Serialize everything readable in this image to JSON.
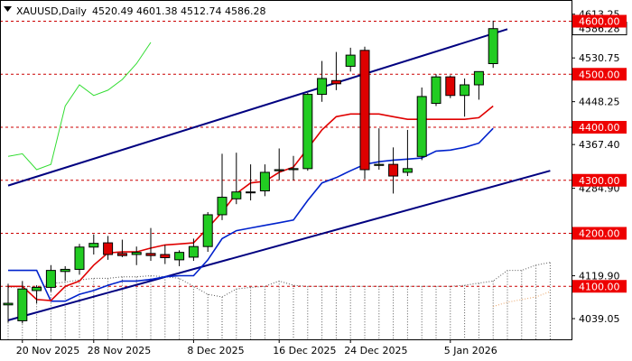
{
  "symbol": "XAUUSD,Daily",
  "ohlc_readout": "4520.49 4601.38 4512.74 4586.28",
  "colors": {
    "bull": "#22cc22",
    "bear": "#dd0000",
    "wick": "#000000",
    "tenkan": "#e00000",
    "kijun": "#0022cc",
    "chikou": "#33dd33",
    "cloud": "#555555",
    "senkou_b": "#e8a060",
    "channel": "#000080",
    "level_line": "#cc0000",
    "level_box": "#ee0000",
    "price_box": "#ffffff"
  },
  "chart_data": {
    "type": "candlestick",
    "ylim": [
      4000,
      4640
    ],
    "x_tick_labels": [
      "20 Nov 2025",
      "28 Nov 2025",
      "8 Dec 2025",
      "16 Dec 2025",
      "24 Dec 2025",
      "5 Jan 2026"
    ],
    "y_tick_labels": [
      "4613.25",
      "4530.75",
      "4448.25",
      "4367.40",
      "4284.90",
      "4202.40",
      "4119.90",
      "4039.05"
    ],
    "current_price": "4586.28",
    "levels": [
      {
        "value": 4600,
        "label": "4600.00"
      },
      {
        "value": 4500,
        "label": "4500.00"
      },
      {
        "value": 4400,
        "label": "4400.00"
      },
      {
        "value": 4300,
        "label": "4300.00"
      },
      {
        "value": 4200,
        "label": "4200.00"
      },
      {
        "value": 4100,
        "label": "4100.00"
      }
    ],
    "candles": [
      {
        "date": "19 Nov",
        "o": 4065,
        "h": 4105,
        "l": 4032,
        "c": 4068
      },
      {
        "date": "20 Nov",
        "o": 4035,
        "h": 4110,
        "l": 4030,
        "c": 4095
      },
      {
        "date": "21 Nov",
        "o": 4092,
        "h": 4102,
        "l": 4068,
        "c": 4098
      },
      {
        "date": "24 Nov",
        "o": 4098,
        "h": 4140,
        "l": 4090,
        "c": 4130
      },
      {
        "date": "25 Nov",
        "o": 4128,
        "h": 4138,
        "l": 4110,
        "c": 4132
      },
      {
        "date": "26 Nov",
        "o": 4132,
        "h": 4180,
        "l": 4122,
        "c": 4174
      },
      {
        "date": "27 Nov",
        "o": 4174,
        "h": 4198,
        "l": 4160,
        "c": 4181
      },
      {
        "date": "28 Nov",
        "o": 4182,
        "h": 4195,
        "l": 4150,
        "c": 4160
      },
      {
        "date": "1 Dec",
        "o": 4162,
        "h": 4188,
        "l": 4155,
        "c": 4158
      },
      {
        "date": "2 Dec",
        "o": 4160,
        "h": 4175,
        "l": 4140,
        "c": 4164
      },
      {
        "date": "3 Dec",
        "o": 4162,
        "h": 4210,
        "l": 4148,
        "c": 4158
      },
      {
        "date": "4 Dec",
        "o": 4160,
        "h": 4178,
        "l": 4142,
        "c": 4154
      },
      {
        "date": "5 Dec",
        "o": 4150,
        "h": 4168,
        "l": 4138,
        "c": 4164
      },
      {
        "date": "8 Dec",
        "o": 4155,
        "h": 4190,
        "l": 4148,
        "c": 4175
      },
      {
        "date": "9 Dec",
        "o": 4175,
        "h": 4240,
        "l": 4165,
        "c": 4235
      },
      {
        "date": "10 Dec",
        "o": 4235,
        "h": 4350,
        "l": 4225,
        "c": 4268
      },
      {
        "date": "11 Dec",
        "o": 4265,
        "h": 4352,
        "l": 4255,
        "c": 4278
      },
      {
        "date": "12 Dec",
        "o": 4278,
        "h": 4330,
        "l": 4262,
        "c": 4278
      },
      {
        "date": "15 Dec",
        "o": 4280,
        "h": 4330,
        "l": 4270,
        "c": 4315
      },
      {
        "date": "16 Dec",
        "o": 4318,
        "h": 4360,
        "l": 4300,
        "c": 4320
      },
      {
        "date": "17 Dec",
        "o": 4320,
        "h": 4346,
        "l": 4300,
        "c": 4322
      },
      {
        "date": "18 Dec",
        "o": 4322,
        "h": 4465,
        "l": 4318,
        "c": 4462
      },
      {
        "date": "19 Dec",
        "o": 4462,
        "h": 4525,
        "l": 4448,
        "c": 4492
      },
      {
        "date": "22 Dec",
        "o": 4488,
        "h": 4542,
        "l": 4470,
        "c": 4482
      },
      {
        "date": "23 Dec",
        "o": 4515,
        "h": 4550,
        "l": 4505,
        "c": 4536
      },
      {
        "date": "24 Dec",
        "o": 4545,
        "h": 4552,
        "l": 4302,
        "c": 4320
      },
      {
        "date": "26 Dec",
        "o": 4328,
        "h": 4398,
        "l": 4320,
        "c": 4330
      },
      {
        "date": "29 Dec",
        "o": 4330,
        "h": 4362,
        "l": 4275,
        "c": 4308
      },
      {
        "date": "30 Dec",
        "o": 4315,
        "h": 4395,
        "l": 4308,
        "c": 4322
      },
      {
        "date": "31 Dec",
        "o": 4345,
        "h": 4475,
        "l": 4338,
        "c": 4458
      },
      {
        "date": "2 Jan",
        "o": 4445,
        "h": 4500,
        "l": 4440,
        "c": 4495
      },
      {
        "date": "5 Jan",
        "o": 4495,
        "h": 4498,
        "l": 4455,
        "c": 4460
      },
      {
        "date": "6 Jan",
        "o": 4460,
        "h": 4492,
        "l": 4420,
        "c": 4480
      },
      {
        "date": "7 Jan",
        "o": 4480,
        "h": 4500,
        "l": 4452,
        "c": 4505
      },
      {
        "date": "8 Jan",
        "o": 4520,
        "h": 4601,
        "l": 4512,
        "c": 4586
      }
    ],
    "tenkan": [
      4100,
      4100,
      4075,
      4073,
      4100,
      4110,
      4140,
      4163,
      4165,
      4165,
      4172,
      4178,
      4180,
      4182,
      4210,
      4240,
      4275,
      4295,
      4298,
      4315,
      4325,
      4360,
      4395,
      4420,
      4425,
      4425,
      4425,
      4420,
      4415,
      4415,
      4415,
      4415,
      4415,
      4418,
      4440
    ],
    "kijun": [
      4130,
      4130,
      4130,
      4072,
      4072,
      4085,
      4092,
      4102,
      4110,
      4110,
      4113,
      4118,
      4120,
      4120,
      4150,
      4190,
      4205,
      4210,
      4215,
      4220,
      4225,
      4262,
      4295,
      4305,
      4318,
      4330,
      4335,
      4338,
      4340,
      4342,
      4355,
      4357,
      4362,
      4370,
      4398
    ],
    "chikou": {
      "start_index": 0,
      "values": [
        4345,
        4350,
        4320,
        4330,
        4440,
        4480,
        4460,
        4470,
        4490,
        4520,
        4560
      ]
    },
    "cloud_top": [
      4098,
      4100,
      4098,
      4105,
      4108,
      4112,
      4115,
      4115,
      4118,
      4118,
      4120,
      4118,
      4115,
      4100,
      4085,
      4080,
      4095,
      4098,
      4100,
      4110,
      4102,
      4100,
      4100,
      4100,
      4100,
      4100,
      4100,
      4100,
      4100,
      4100,
      4100,
      4100,
      4102,
      4106,
      4110,
      4130,
      4130,
      4140,
      4145
    ],
    "senkou_b_late": {
      "start_index": 34,
      "values": [
        4062,
        4070,
        4075,
        4080,
        4090
      ]
    },
    "channel_upper": {
      "x": [
        0,
        35
      ],
      "y": [
        4290,
        4585
      ]
    },
    "channel_lower": {
      "x": [
        0,
        38
      ],
      "y": [
        4036,
        4318
      ]
    }
  }
}
